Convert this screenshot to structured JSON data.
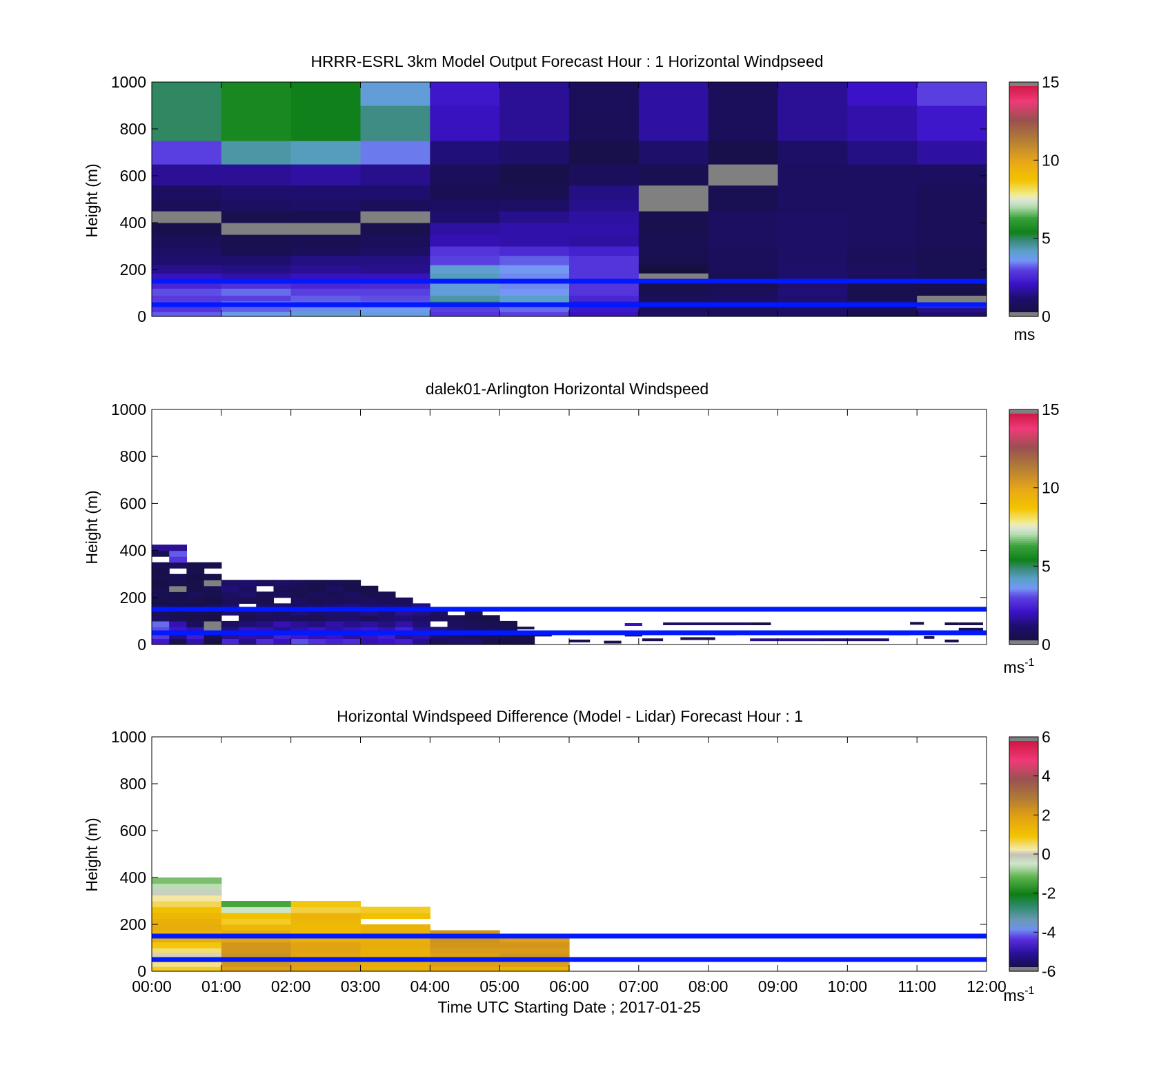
{
  "chart_data": [
    {
      "type": "heatmap",
      "title": "HRRR-ESRL 3km Model Output   Forecast Hour : 1 Horizontal Windpseed",
      "ylabel": "Height (m)",
      "xlabel": "",
      "ylim": [
        0,
        1000
      ],
      "yticks": [
        "0",
        "200",
        "400",
        "600",
        "800",
        "1000"
      ],
      "xlim_hours": [
        0,
        12
      ],
      "show_xticklabels": false,
      "colorbar": {
        "min": 0,
        "max": 15,
        "ticks": [
          "0",
          "5",
          "10",
          "15"
        ],
        "unit": "ms",
        "unit_sup": ""
      },
      "time_bins_hours": [
        [
          0,
          1
        ],
        [
          1,
          2
        ],
        [
          2,
          3
        ],
        [
          3,
          4
        ],
        [
          4,
          5
        ],
        [
          5,
          6
        ],
        [
          6,
          7
        ],
        [
          7,
          8
        ],
        [
          8,
          9
        ],
        [
          9,
          10
        ],
        [
          10,
          11
        ],
        [
          11,
          12
        ]
      ],
      "height_edges_m": [
        0,
        20,
        40,
        65,
        90,
        120,
        150,
        185,
        220,
        260,
        300,
        350,
        400,
        450,
        500,
        560,
        650,
        750,
        900,
        1000
      ],
      "values": [
        [
          3.2,
          3.8,
          4.0,
          3.9,
          2.8,
          3.0,
          2.0,
          1.0,
          0.9,
          1.0,
          0.5,
          1.2
        ],
        [
          2.8,
          3.2,
          3.5,
          3.6,
          3.0,
          3.3,
          2.2,
          0.8,
          0.8,
          1.0,
          0.7,
          1.5
        ],
        [
          3.0,
          3.5,
          3.3,
          3.2,
          5.0,
          4.0,
          2.0,
          0.9,
          0.8,
          1.1,
          0.8,
          null
        ],
        [
          2.9,
          3.0,
          3.2,
          3.1,
          4.5,
          4.2,
          2.5,
          0.8,
          0.9,
          1.2,
          0.6,
          null
        ],
        [
          3.1,
          3.3,
          3.0,
          3.0,
          4.0,
          3.6,
          2.8,
          0.6,
          0.7,
          1.3,
          0.5,
          0.4
        ],
        [
          2.5,
          2.7,
          2.5,
          2.6,
          4.0,
          3.5,
          2.8,
          0.5,
          0.6,
          1.2,
          0.6,
          0.4
        ],
        [
          2.0,
          1.8,
          2.0,
          2.0,
          4.3,
          3.5,
          2.8,
          null,
          0.6,
          1.1,
          0.8,
          0.5
        ],
        [
          1.5,
          1.4,
          1.6,
          1.5,
          4.1,
          3.6,
          2.8,
          0.2,
          0.7,
          1.1,
          0.9,
          0.6
        ],
        [
          1.2,
          1.2,
          1.4,
          1.4,
          3.0,
          3.2,
          2.8,
          0.5,
          0.8,
          1.0,
          0.7,
          0.6
        ],
        [
          1.0,
          0.6,
          0.8,
          1.0,
          2.8,
          2.6,
          2.4,
          0.6,
          0.8,
          1.0,
          0.8,
          0.6
        ],
        [
          0.7,
          0.5,
          0.6,
          0.7,
          1.9,
          1.8,
          1.7,
          0.6,
          0.9,
          1.0,
          0.9,
          0.7
        ],
        [
          0.4,
          null,
          null,
          0.5,
          1.7,
          1.8,
          1.8,
          0.5,
          0.9,
          1.0,
          0.9,
          0.7
        ],
        [
          null,
          0.5,
          0.5,
          null,
          1.2,
          1.5,
          1.7,
          0.5,
          0.9,
          1.0,
          0.9,
          0.7
        ],
        [
          0.7,
          0.9,
          1.0,
          0.8,
          0.9,
          1.0,
          1.5,
          null,
          0.6,
          0.9,
          0.9,
          0.7
        ],
        [
          0.9,
          1.2,
          1.2,
          1.2,
          0.6,
          0.6,
          1.4,
          null,
          0.6,
          0.9,
          0.9,
          0.7
        ],
        [
          1.6,
          1.6,
          1.7,
          1.5,
          0.8,
          0.4,
          0.8,
          0.6,
          null,
          0.9,
          0.9,
          0.9
        ],
        [
          3.0,
          4.5,
          4.3,
          3.4,
          1.3,
          1.1,
          0.4,
          1.1,
          0.4,
          1.0,
          1.4,
          1.7
        ],
        [
          5.0,
          5.6,
          5.4,
          4.8,
          2.0,
          1.6,
          0.7,
          1.7,
          0.8,
          1.6,
          1.8,
          2.2
        ],
        [
          5.0,
          5.6,
          5.4,
          4.0,
          2.2,
          1.6,
          0.8,
          1.7,
          0.8,
          1.6,
          2.1,
          3.0
        ]
      ],
      "hlines_m": [
        50,
        150
      ],
      "hline_color": "#0019ff"
    },
    {
      "type": "heatmap",
      "title": "dalek01-Arlington  Horizontal Windspeed",
      "ylabel": "Height (m)",
      "xlabel": "",
      "ylim": [
        0,
        1000
      ],
      "yticks": [
        "0",
        "200",
        "400",
        "600",
        "800",
        "1000"
      ],
      "xlim_hours": [
        0,
        12
      ],
      "show_xticklabels": false,
      "colorbar": {
        "min": 0,
        "max": 15,
        "ticks": [
          "0",
          "5",
          "10",
          "15"
        ],
        "unit": "ms",
        "unit_sup": "-1"
      },
      "time_bins_hours": [
        [
          0,
          0.25
        ],
        [
          0.25,
          0.5
        ],
        [
          0.5,
          0.75
        ],
        [
          0.75,
          1
        ],
        [
          1,
          1.25
        ],
        [
          1.25,
          1.5
        ],
        [
          1.5,
          1.75
        ],
        [
          1.75,
          2
        ],
        [
          2,
          2.25
        ],
        [
          2.25,
          2.5
        ],
        [
          2.5,
          2.75
        ],
        [
          2.75,
          3
        ],
        [
          3,
          3.25
        ],
        [
          3.25,
          3.5
        ],
        [
          3.5,
          3.75
        ],
        [
          3.75,
          4
        ],
        [
          4,
          4.25
        ],
        [
          4.25,
          4.5
        ],
        [
          4.5,
          4.75
        ],
        [
          4.75,
          5
        ],
        [
          5,
          5.25
        ],
        [
          5.25,
          5.5
        ]
      ],
      "height_edges_m": [
        0,
        25,
        50,
        75,
        100,
        125,
        150,
        175,
        200,
        225,
        250,
        275,
        300,
        325,
        350,
        375,
        400,
        425
      ],
      "values": [
        [
          2.2,
          0.6,
          1.8,
          0.3,
          2.5,
          1.5,
          2.6,
          2.0,
          3.1,
          2.7,
          2.4,
          2.6,
          1.9,
          2.1,
          2.3,
          1.5,
          0.8,
          1.0,
          1.2,
          0.5,
          0.3,
          0.4
        ],
        [
          2.9,
          1.4,
          2.3,
          0.5,
          1.6,
          1.8,
          1.7,
          2.4,
          2.2,
          1.9,
          2.1,
          1.7,
          2.0,
          2.3,
          1.6,
          1.8,
          1.2,
          0.9,
          0.7,
          0.6,
          0.4,
          0.3
        ],
        [
          3.1,
          2.2,
          1.9,
          null,
          1.4,
          2.0,
          1.9,
          1.5,
          1.8,
          2.1,
          1.7,
          2.0,
          2.2,
          1.9,
          2.4,
          1.6,
          1.4,
          1.1,
          0.9,
          0.8,
          0.6,
          null
        ],
        [
          3.3,
          1.9,
          0.8,
          null,
          0.9,
          1.3,
          1.4,
          1.9,
          1.6,
          1.4,
          1.8,
          1.5,
          1.7,
          1.4,
          1.8,
          1.3,
          null,
          0.9,
          0.7,
          0.6,
          0.5,
          null
        ],
        [
          0.9,
          0.6,
          0.4,
          0.3,
          null,
          0.6,
          0.8,
          0.9,
          0.8,
          0.7,
          1.0,
          1.2,
          0.8,
          1.1,
          1.3,
          1.0,
          0.8,
          0.6,
          0.4,
          0.3,
          null,
          null
        ],
        [
          0.7,
          0.5,
          0.6,
          0.4,
          1.2,
          0.8,
          1.1,
          0.8,
          1.3,
          1.0,
          1.2,
          1.1,
          1.4,
          1.2,
          1.6,
          1.4,
          0.9,
          null,
          0.7,
          null,
          null,
          null
        ],
        [
          0.5,
          0.4,
          0.3,
          0.5,
          0.9,
          null,
          0.7,
          1.0,
          0.8,
          0.9,
          1.1,
          1.3,
          1.0,
          1.2,
          1.0,
          1.4,
          null,
          null,
          null,
          null,
          null,
          null
        ],
        [
          0.4,
          0.6,
          0.5,
          0.3,
          0.8,
          0.6,
          0.5,
          null,
          0.9,
          0.6,
          0.8,
          0.7,
          0.9,
          0.7,
          0.8,
          null,
          null,
          null,
          null,
          null,
          null,
          null
        ],
        [
          0.6,
          0.4,
          0.7,
          0.5,
          0.9,
          1.1,
          0.6,
          0.8,
          0.5,
          0.8,
          0.6,
          0.9,
          0.5,
          0.6,
          null,
          null,
          null,
          null,
          null,
          null,
          null,
          null
        ],
        [
          0.5,
          null,
          0.4,
          0.6,
          1.3,
          0.9,
          null,
          0.7,
          0.6,
          0.4,
          0.9,
          0.5,
          0.4,
          null,
          null,
          null,
          null,
          null,
          null,
          null,
          null,
          null
        ],
        [
          0.3,
          0.5,
          0.4,
          null,
          1.0,
          1.2,
          0.8,
          1.0,
          0.7,
          0.5,
          0.6,
          0.4,
          null,
          null,
          null,
          null,
          null,
          null,
          null,
          null,
          null,
          null
        ],
        [
          0.5,
          0.6,
          0.3,
          0.4,
          null,
          null,
          null,
          null,
          null,
          null,
          null,
          null,
          null,
          null,
          null,
          null,
          null,
          null,
          null,
          null,
          null,
          null
        ],
        [
          0.4,
          null,
          0.5,
          null,
          null,
          null,
          null,
          null,
          null,
          null,
          null,
          null,
          null,
          null,
          null,
          null,
          null,
          null,
          null,
          null,
          null,
          null
        ],
        [
          0.6,
          0.7,
          0.4,
          0.5,
          null,
          null,
          null,
          null,
          null,
          null,
          null,
          null,
          null,
          null,
          null,
          null,
          null,
          null,
          null,
          null,
          null,
          null
        ],
        [
          null,
          2.8,
          null,
          null,
          null,
          null,
          null,
          null,
          null,
          null,
          null,
          null,
          null,
          null,
          null,
          null,
          null,
          null,
          null,
          null,
          null,
          null
        ],
        [
          0.5,
          3.2,
          null,
          null,
          null,
          null,
          null,
          null,
          null,
          null,
          null,
          null,
          null,
          null,
          null,
          null,
          null,
          null,
          null,
          null,
          null,
          null
        ],
        [
          1.6,
          1.6,
          null,
          null,
          null,
          null,
          null,
          null,
          null,
          null,
          null,
          null,
          null,
          null,
          null,
          null,
          null,
          null,
          null,
          null,
          null,
          null
        ]
      ],
      "sparse_segments": [
        {
          "t0": 5.2,
          "t1": 5.5,
          "h": 70,
          "v": 0.4
        },
        {
          "t0": 5.5,
          "t1": 5.75,
          "h": 40,
          "v": 0.3
        },
        {
          "t0": 6.0,
          "t1": 6.3,
          "h": 15,
          "v": 0.5
        },
        {
          "t0": 6.5,
          "t1": 6.75,
          "h": 10,
          "v": 0.4
        },
        {
          "t0": 6.8,
          "t1": 7.05,
          "h": 85,
          "v": 2.0
        },
        {
          "t0": 6.8,
          "t1": 7.05,
          "h": 40,
          "v": 0.6
        },
        {
          "t0": 7.05,
          "t1": 7.35,
          "h": 20,
          "v": 0.5
        },
        {
          "t0": 7.35,
          "t1": 7.6,
          "h": 50,
          "v": 0.4
        },
        {
          "t0": 7.35,
          "t1": 8.6,
          "h": 88,
          "v": 1.0
        },
        {
          "t0": 7.6,
          "t1": 8.1,
          "h": 25,
          "v": 0.5
        },
        {
          "t0": 8.1,
          "t1": 8.4,
          "h": 45,
          "v": 0.6
        },
        {
          "t0": 8.6,
          "t1": 8.9,
          "h": 88,
          "v": 0.3
        },
        {
          "t0": 8.6,
          "t1": 9.6,
          "h": 20,
          "v": 1.5
        },
        {
          "t0": 9.6,
          "t1": 10.6,
          "h": 20,
          "v": 1.2
        },
        {
          "t0": 10.6,
          "t1": 10.9,
          "h": 45,
          "v": 0.5
        },
        {
          "t0": 10.9,
          "t1": 11.1,
          "h": 90,
          "v": 0.3
        },
        {
          "t0": 11.1,
          "t1": 11.25,
          "h": 30,
          "v": 0.6
        },
        {
          "t0": 11.4,
          "t1": 11.6,
          "h": 88,
          "v": 0.4
        },
        {
          "t0": 11.4,
          "t1": 11.6,
          "h": 15,
          "v": 0.5
        },
        {
          "t0": 11.6,
          "t1": 11.95,
          "h": 65,
          "v": 0.6
        },
        {
          "t0": 11.6,
          "t1": 11.95,
          "h": 88,
          "v": 0.5
        }
      ],
      "hlines_m": [
        50,
        150
      ],
      "hline_color": "#0019ff"
    },
    {
      "type": "heatmap",
      "title": "Horizontal Windspeed Difference (Model - Lidar) Forecast Hour : 1",
      "ylabel": "Height (m)",
      "xlabel": "Time UTC  Starting Date ; 2017-01-25",
      "ylim": [
        0,
        1000
      ],
      "yticks": [
        "0",
        "200",
        "400",
        "600",
        "800",
        "1000"
      ],
      "xlim_hours": [
        0,
        12
      ],
      "xticklabels": [
        "00:00",
        "01:00",
        "02:00",
        "03:00",
        "04:00",
        "05:00",
        "06:00",
        "07:00",
        "08:00",
        "09:00",
        "10:00",
        "11:00",
        "12:00"
      ],
      "show_xticklabels": true,
      "colorbar": {
        "min": -6,
        "max": 6,
        "ticks": [
          "-6",
          "-4",
          "-2",
          "0",
          "2",
          "4",
          "6"
        ],
        "unit": "ms",
        "unit_sup": "-1"
      },
      "time_bins_hours": [
        [
          0,
          1
        ],
        [
          1,
          2
        ],
        [
          2,
          3
        ],
        [
          3,
          4
        ],
        [
          4,
          5
        ],
        [
          5,
          6
        ]
      ],
      "height_edges_m": [
        0,
        20,
        40,
        60,
        80,
        100,
        125,
        150,
        175,
        200,
        225,
        250,
        275,
        300,
        325,
        350,
        375,
        400
      ],
      "values": [
        [
          0.8,
          2.0,
          1.9,
          1.5,
          1.7,
          1.4
        ],
        [
          0.4,
          2.2,
          2.0,
          1.6,
          2.0,
          2.0
        ],
        [
          1.2,
          2.3,
          2.1,
          1.6,
          2.2,
          2.2
        ],
        [
          0.1,
          2.3,
          1.8,
          1.5,
          2.0,
          2.2
        ],
        [
          0.5,
          2.2,
          1.9,
          1.5,
          2.1,
          2.1
        ],
        [
          0.9,
          2.2,
          1.9,
          1.6,
          2.2,
          2.2
        ],
        [
          1.6,
          1.8,
          1.5,
          1.5,
          2.3,
          2.0
        ],
        [
          1.4,
          1.6,
          1.2,
          1.5,
          2.2,
          null
        ],
        [
          1.6,
          1.3,
          1.2,
          1.4,
          null,
          null
        ],
        [
          1.5,
          0.8,
          1.3,
          null,
          null,
          null
        ],
        [
          1.3,
          1.0,
          1.4,
          1.0,
          null,
          null
        ],
        [
          1.0,
          -0.5,
          0.7,
          0.8,
          null,
          null
        ],
        [
          0.6,
          -1.4,
          0.9,
          null,
          null,
          null
        ],
        [
          0.3,
          null,
          null,
          null,
          null,
          null
        ],
        [
          -0.2,
          null,
          null,
          null,
          null,
          null
        ],
        [
          -0.6,
          null,
          null,
          null,
          null,
          null
        ],
        [
          -1.0,
          null,
          null,
          null,
          null,
          null
        ]
      ],
      "hlines_m": [
        50,
        150
      ],
      "hline_color": "#0019ff"
    }
  ]
}
